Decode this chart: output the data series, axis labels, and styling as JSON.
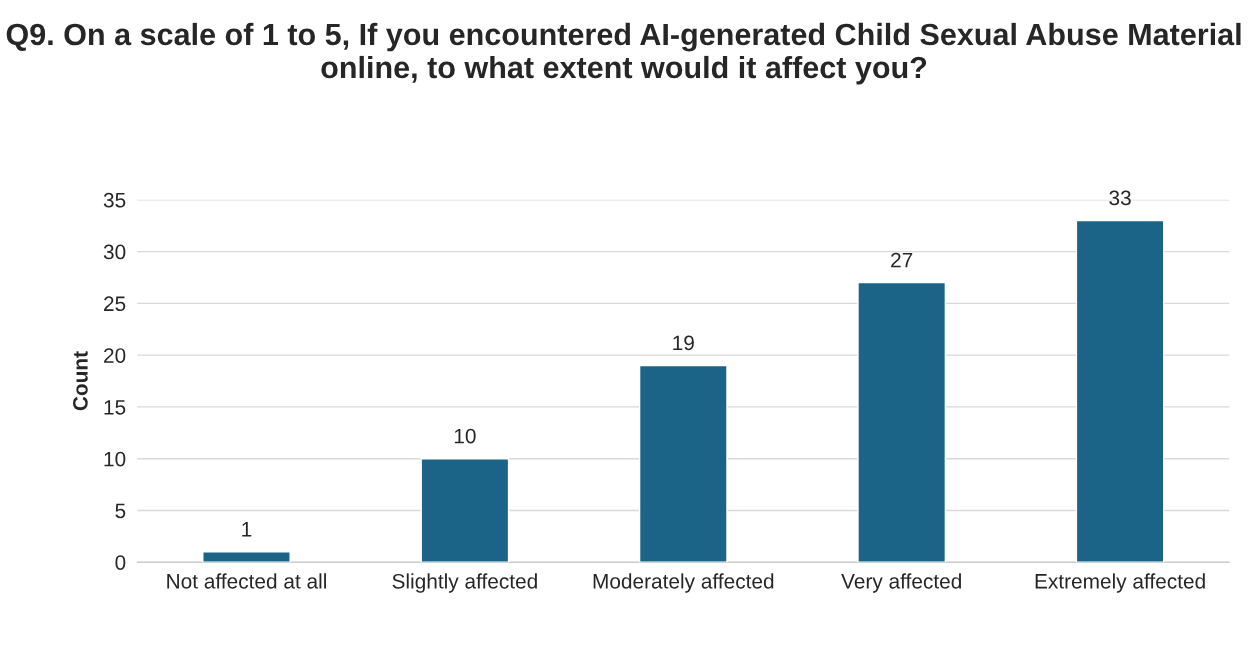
{
  "chart_data": {
    "type": "bar",
    "title": "Q9. On a scale of 1 to 5, If you encountered AI-generated Child Sexual Abuse Material online, to what extent would it affect you?",
    "ylabel": "Count",
    "categories": [
      "Not affected at all",
      "Slightly affected",
      "Moderately affected",
      "Very affected",
      "Extremely affected"
    ],
    "values": [
      1,
      10,
      19,
      27,
      33
    ],
    "color": "#1b6488",
    "ylim": [
      0,
      35
    ],
    "yticks": [
      0,
      5,
      10,
      15,
      20,
      25,
      30,
      35
    ],
    "grid": "y",
    "data_labels": true
  }
}
